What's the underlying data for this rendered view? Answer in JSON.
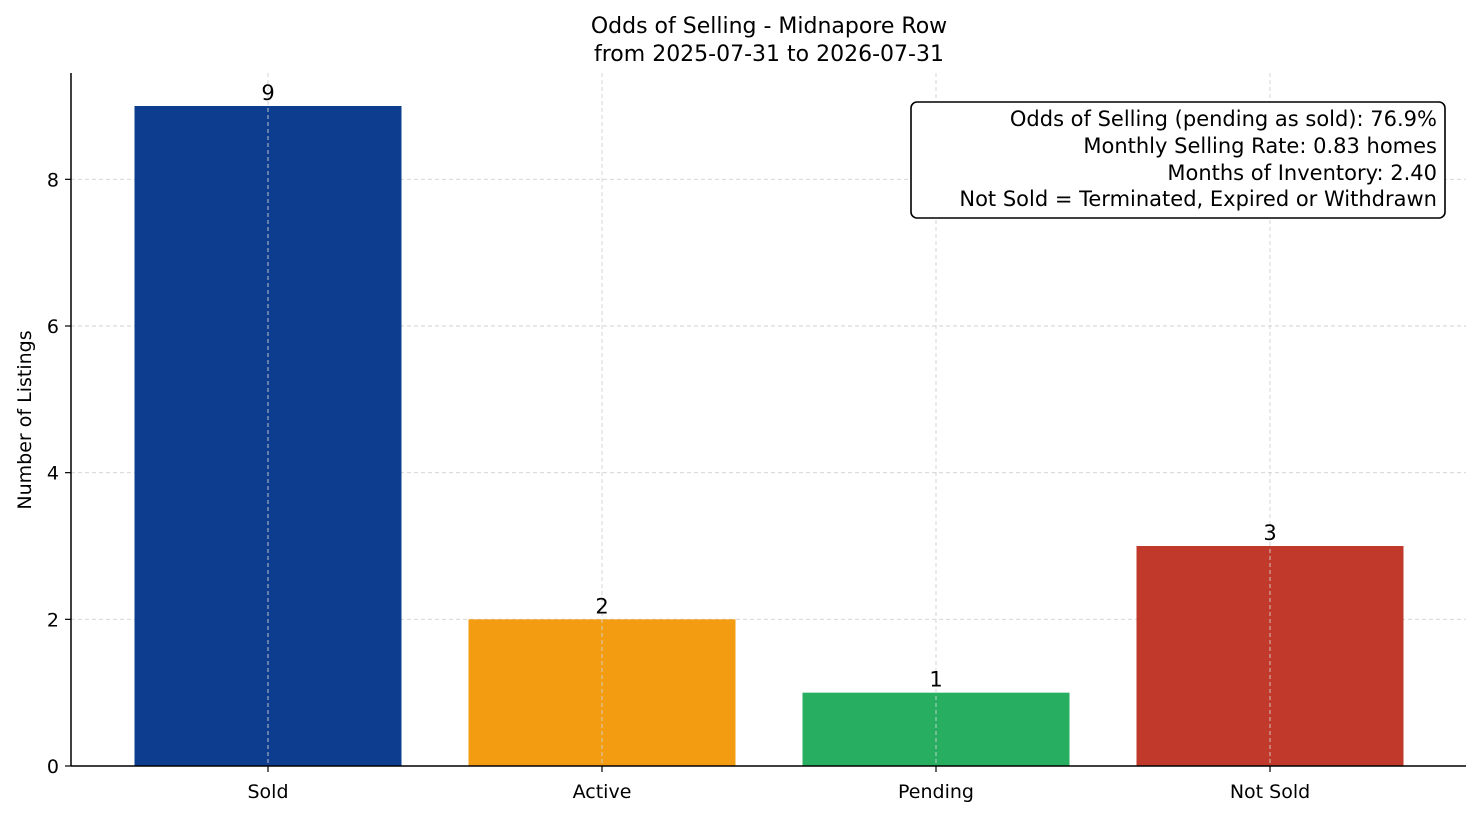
{
  "chart_data": {
    "type": "bar",
    "title": "Odds of Selling - Midnapore Row",
    "subtitle": "from 2025-07-31 to 2026-07-31",
    "xlabel": "",
    "ylabel": "Number of Listings",
    "categories": [
      "Sold",
      "Active",
      "Pending",
      "Not Sold"
    ],
    "values": [
      9,
      2,
      1,
      3
    ],
    "colors": [
      "#0d3d8e",
      "#f39c12",
      "#27ae60",
      "#c0392b"
    ],
    "ylim": [
      0,
      9.45
    ],
    "yticks": [
      0,
      2,
      4,
      6,
      8
    ],
    "grid": true,
    "annotation_box": {
      "position": "top-right",
      "lines": [
        "Odds of Selling (pending as sold): 76.9%",
        "Monthly Selling Rate: 0.83 homes",
        "Months of Inventory: 2.40",
        "Not Sold = Terminated, Expired or Withdrawn"
      ]
    }
  }
}
